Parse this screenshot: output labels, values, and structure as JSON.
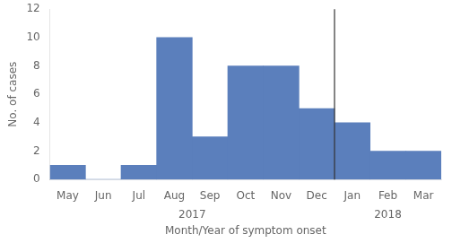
{
  "chart_data": {
    "type": "bar",
    "categories": [
      "May",
      "Jun",
      "Jul",
      "Aug",
      "Sep",
      "Oct",
      "Nov",
      "Dec",
      "Jan",
      "Feb",
      "Mar"
    ],
    "values": [
      1,
      0,
      1,
      10,
      3,
      8,
      8,
      5,
      4,
      2,
      2
    ],
    "color": "#5b7fbc",
    "xlabel": "Month/Year of symptom onset",
    "ylabel": "No. of cases",
    "ylim": [
      0,
      12
    ],
    "yticks": [
      0,
      2,
      4,
      6,
      8,
      10,
      12
    ],
    "grid": false,
    "annotations": [
      {
        "text": "2017",
        "from": "May",
        "to": "Dec"
      },
      {
        "text": "2018",
        "from": "Jan",
        "to": "Mar"
      }
    ]
  }
}
